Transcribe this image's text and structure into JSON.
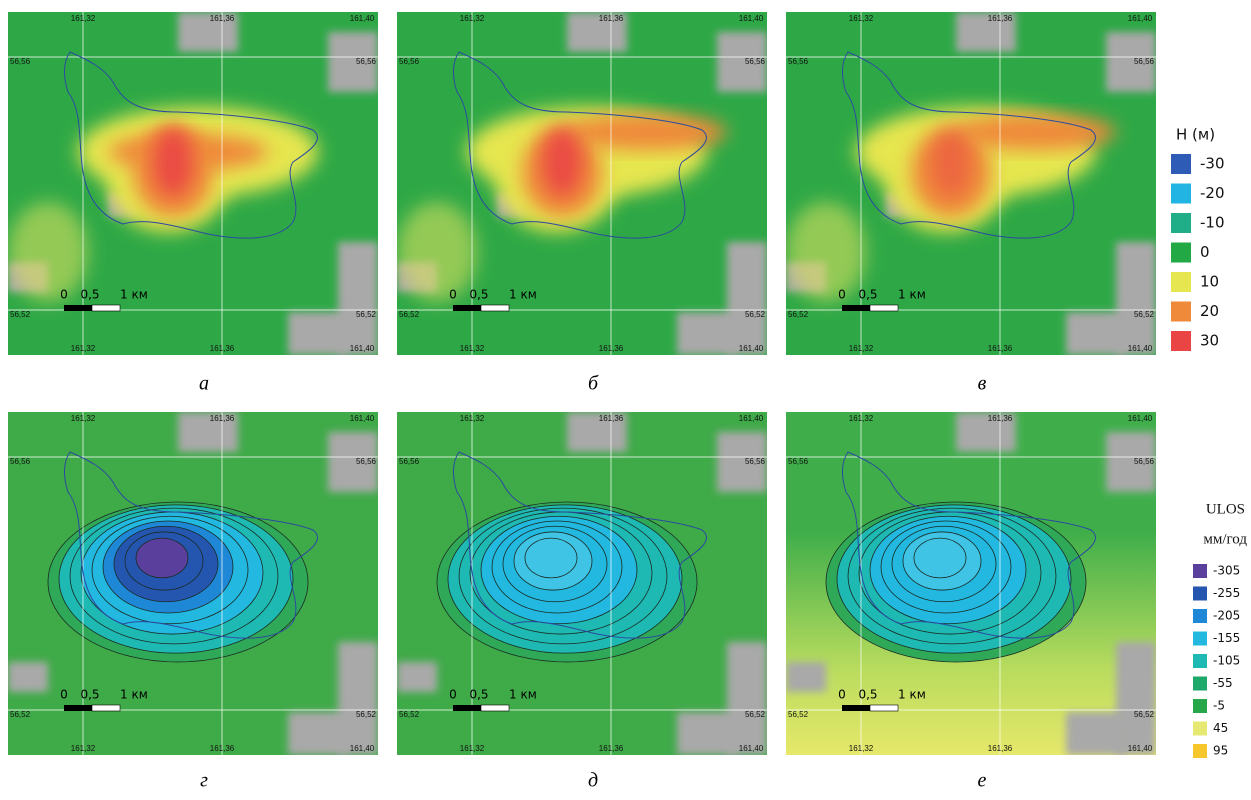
{
  "panels": [
    {
      "label": "а"
    },
    {
      "label": "б"
    },
    {
      "label": "в"
    },
    {
      "label": "г"
    },
    {
      "label": "д"
    },
    {
      "label": "е"
    }
  ],
  "map_labels": {
    "lon": [
      "161,32",
      "161,36",
      "161,40"
    ],
    "lat": [
      "56,56",
      "56,52"
    ],
    "scale": [
      "0",
      "0,5",
      "1 км"
    ]
  },
  "legend_top": {
    "title": "Н (м)",
    "items": [
      {
        "value": -30,
        "color": "#2d5bb5"
      },
      {
        "value": -20,
        "color": "#22b4e2"
      },
      {
        "value": -10,
        "color": "#1fae88"
      },
      {
        "value": 0,
        "color": "#22a845"
      },
      {
        "value": 10,
        "color": "#e6e650"
      },
      {
        "value": 20,
        "color": "#ef8a3b"
      },
      {
        "value": 30,
        "color": "#ea4545"
      }
    ]
  },
  "legend_bottom": {
    "title": "ULOS",
    "unit": "мм/год",
    "items": [
      {
        "value": -305,
        "color": "#5a3f9c"
      },
      {
        "value": -255,
        "color": "#2456b0"
      },
      {
        "value": -205,
        "color": "#1f88d6"
      },
      {
        "value": -155,
        "color": "#22b8e0"
      },
      {
        "value": -105,
        "color": "#1eb9b2"
      },
      {
        "value": -55,
        "color": "#1ea86a"
      },
      {
        "value": -5,
        "color": "#27a64a"
      },
      {
        "value": 45,
        "color": "#e6e872"
      },
      {
        "value": 95,
        "color": "#f5c72a"
      }
    ]
  }
}
